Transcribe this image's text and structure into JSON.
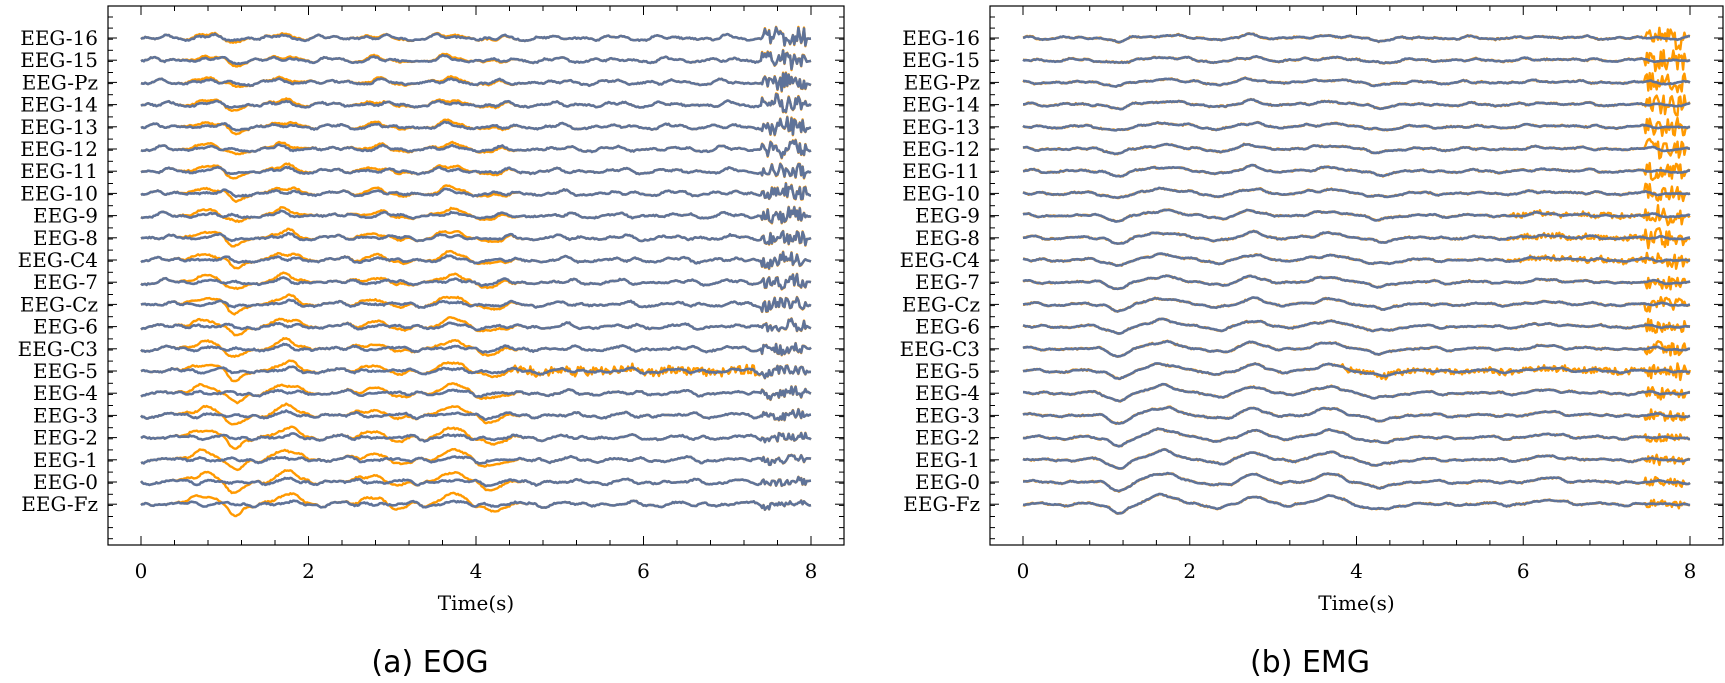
{
  "chart_data": [
    {
      "type": "line",
      "caption": "(a) EOG",
      "xlabel": "Time(s)",
      "xlim": [
        -0.4,
        8.4
      ],
      "xticks": [
        0,
        2,
        4,
        6,
        8
      ],
      "channels": [
        "EEG-Fz",
        "EEG-0",
        "EEG-1",
        "EEG-2",
        "EEG-3",
        "EEG-4",
        "EEG-5",
        "EEG-C3",
        "EEG-6",
        "EEG-Cz",
        "EEG-7",
        "EEG-C4",
        "EEG-8",
        "EEG-9",
        "EEG-10",
        "EEG-11",
        "EEG-12",
        "EEG-13",
        "EEG-14",
        "EEG-Pz",
        "EEG-15",
        "EEG-16"
      ],
      "series_colors": {
        "contaminated": "#ff9900",
        "clean": "#5f7399"
      },
      "grid": false
    },
    {
      "type": "line",
      "caption": "(b) EMG",
      "xlabel": "Time(s)",
      "xlim": [
        -0.4,
        8.4
      ],
      "xticks": [
        0,
        2,
        4,
        6,
        8
      ],
      "channels": [
        "EEG-Fz",
        "EEG-0",
        "EEG-1",
        "EEG-2",
        "EEG-3",
        "EEG-4",
        "EEG-5",
        "EEG-C3",
        "EEG-6",
        "EEG-Cz",
        "EEG-7",
        "EEG-C4",
        "EEG-8",
        "EEG-9",
        "EEG-10",
        "EEG-11",
        "EEG-12",
        "EEG-13",
        "EEG-14",
        "EEG-Pz",
        "EEG-15",
        "EEG-16"
      ],
      "series_colors": {
        "contaminated": "#ff9900",
        "clean": "#5f7399"
      },
      "grid": false
    }
  ]
}
